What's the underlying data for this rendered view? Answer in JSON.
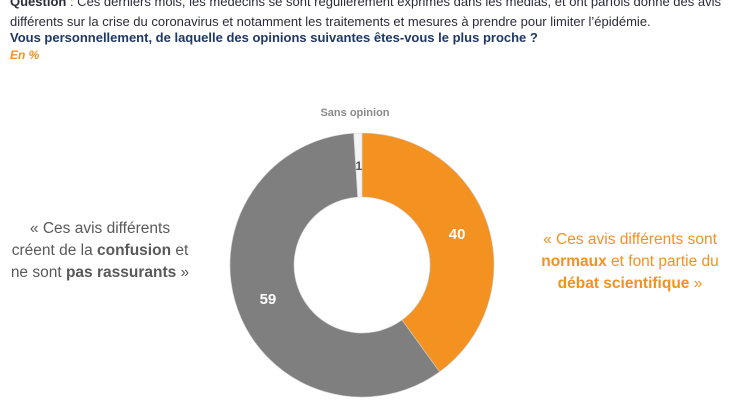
{
  "chart_data": {
    "type": "donut",
    "title": [
      [
        {
          "text": "Question",
          "bold": true
        },
        {
          "text": " : Ces derniers mois, les médecins se sont régulièrement exprimés dans les médias, et ont parfois donné des avis",
          "bold": false
        }
      ],
      [
        {
          "text": "différents sur la crise du coronavirus et notamment les traitements et mesures à prendre pour limiter l’épidémie.",
          "bold": false
        }
      ]
    ],
    "subtitle": "Vous personnellement, de laquelle des opinions suivantes êtes-vous le plus proche ?",
    "unit": "En %",
    "categories": [
      [
        [
          {
            "text": "« Ces avis différents sont",
            "bold": false
          }
        ],
        [
          {
            "text": "normaux",
            "bold": true
          },
          {
            "text": " et font partie du",
            "bold": false
          }
        ],
        [
          {
            "text": "débat scientifique",
            "bold": true
          },
          {
            "text": " »",
            "bold": false
          }
        ]
      ],
      [
        [
          {
            "text": "« Ces avis différents",
            "bold": false
          }
        ],
        [
          {
            "text": "créent de la ",
            "bold": false
          },
          {
            "text": "confusion",
            "bold": true
          },
          {
            "text": " et",
            "bold": false
          }
        ],
        [
          {
            "text": "ne sont ",
            "bold": false
          },
          {
            "text": "pas rassurants",
            "bold": true
          },
          {
            "text": " »",
            "bold": false
          }
        ]
      ],
      [
        [
          {
            "text": "Sans opinion",
            "bold": true
          }
        ]
      ]
    ],
    "values": [
      40,
      59,
      1
    ],
    "colors": [
      "#f39220",
      "#7f7f7f",
      "#f4f4f4"
    ]
  }
}
